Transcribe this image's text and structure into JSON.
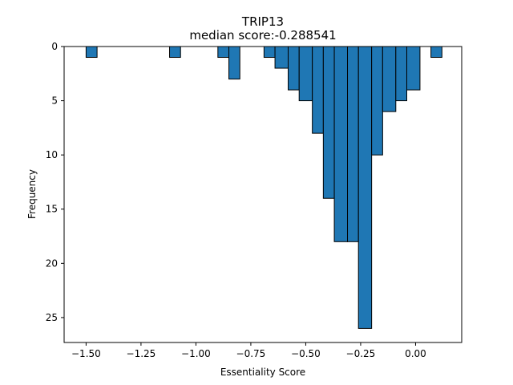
{
  "chart_data": {
    "type": "bar",
    "subtype": "histogram",
    "title": "TRIP13",
    "subtitle": "median score:-0.288541",
    "xlabel": "Essentiality Score",
    "ylabel": "Frequency",
    "xlim": [
      -1.6,
      0.21
    ],
    "ylim": [
      27.3,
      0
    ],
    "y_axis_inverted": true,
    "grid": false,
    "bar_color": "#1f77b4",
    "edge_color": "#000000",
    "x_ticks": [
      {
        "value": -1.5,
        "label": "−1.50"
      },
      {
        "value": -1.25,
        "label": "−1.25"
      },
      {
        "value": -1.0,
        "label": "−1.00"
      },
      {
        "value": -0.75,
        "label": "−0.75"
      },
      {
        "value": -0.5,
        "label": "−0.50"
      },
      {
        "value": -0.25,
        "label": "−0.25"
      },
      {
        "value": 0.0,
        "label": "0.00"
      }
    ],
    "y_ticks": [
      {
        "value": 0,
        "label": "0"
      },
      {
        "value": 5,
        "label": "5"
      },
      {
        "value": 10,
        "label": "10"
      },
      {
        "value": 15,
        "label": "15"
      },
      {
        "value": 20,
        "label": "20"
      },
      {
        "value": 25,
        "label": "25"
      }
    ],
    "bins": [
      {
        "start": -1.5,
        "end": -1.45,
        "count": 1
      },
      {
        "start": -1.12,
        "end": -1.07,
        "count": 1
      },
      {
        "start": -0.9,
        "end": -0.85,
        "count": 1
      },
      {
        "start": -0.85,
        "end": -0.8,
        "count": 3
      },
      {
        "start": -0.69,
        "end": -0.64,
        "count": 1
      },
      {
        "start": -0.64,
        "end": -0.58,
        "count": 2
      },
      {
        "start": -0.58,
        "end": -0.53,
        "count": 4
      },
      {
        "start": -0.53,
        "end": -0.47,
        "count": 5
      },
      {
        "start": -0.47,
        "end": -0.42,
        "count": 8
      },
      {
        "start": -0.42,
        "end": -0.37,
        "count": 14
      },
      {
        "start": -0.37,
        "end": -0.31,
        "count": 18
      },
      {
        "start": -0.31,
        "end": -0.26,
        "count": 18
      },
      {
        "start": -0.26,
        "end": -0.2,
        "count": 26
      },
      {
        "start": -0.2,
        "end": -0.15,
        "count": 10
      },
      {
        "start": -0.15,
        "end": -0.09,
        "count": 6
      },
      {
        "start": -0.09,
        "end": -0.04,
        "count": 5
      },
      {
        "start": -0.04,
        "end": 0.02,
        "count": 4
      },
      {
        "start": 0.07,
        "end": 0.12,
        "count": 1
      }
    ]
  }
}
